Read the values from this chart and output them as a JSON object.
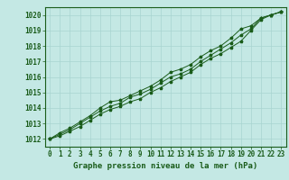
{
  "title": "Graphe pression niveau de la mer (hPa)",
  "xlabel_hours": [
    0,
    1,
    2,
    3,
    4,
    5,
    6,
    7,
    8,
    9,
    10,
    11,
    12,
    13,
    14,
    15,
    16,
    17,
    18,
    19,
    20,
    21,
    22,
    23
  ],
  "ylim": [
    1011.5,
    1020.5
  ],
  "xlim": [
    -0.5,
    23.5
  ],
  "yticks": [
    1012,
    1013,
    1014,
    1015,
    1016,
    1017,
    1018,
    1019,
    1020
  ],
  "bg_color": "#c4e8e4",
  "grid_color": "#a8d4d0",
  "line_color": "#1a5c1a",
  "marker_color": "#1a5c1a",
  "series_low": [
    1012.0,
    1012.2,
    1012.5,
    1012.8,
    1013.2,
    1013.6,
    1013.9,
    1014.1,
    1014.4,
    1014.6,
    1015.0,
    1015.3,
    1015.7,
    1016.0,
    1016.3,
    1016.8,
    1017.2,
    1017.5,
    1017.9,
    1018.3,
    1019.0,
    1019.7,
    1020.0,
    1020.2
  ],
  "series_mid": [
    1012.0,
    1012.3,
    1012.6,
    1013.0,
    1013.4,
    1013.8,
    1014.1,
    1014.3,
    1014.7,
    1014.9,
    1015.2,
    1015.6,
    1016.0,
    1016.2,
    1016.5,
    1017.0,
    1017.4,
    1017.8,
    1018.2,
    1018.7,
    1019.1,
    1019.8,
    1020.0,
    1020.2
  ],
  "series_high": [
    1012.0,
    1012.4,
    1012.7,
    1013.1,
    1013.5,
    1014.0,
    1014.4,
    1014.5,
    1014.8,
    1015.1,
    1015.4,
    1015.8,
    1016.3,
    1016.5,
    1016.8,
    1017.3,
    1017.7,
    1018.0,
    1018.5,
    1019.1,
    1019.3,
    1019.8,
    1020.0,
    1020.2
  ],
  "title_fontsize": 6.5,
  "tick_fontsize": 5.5
}
